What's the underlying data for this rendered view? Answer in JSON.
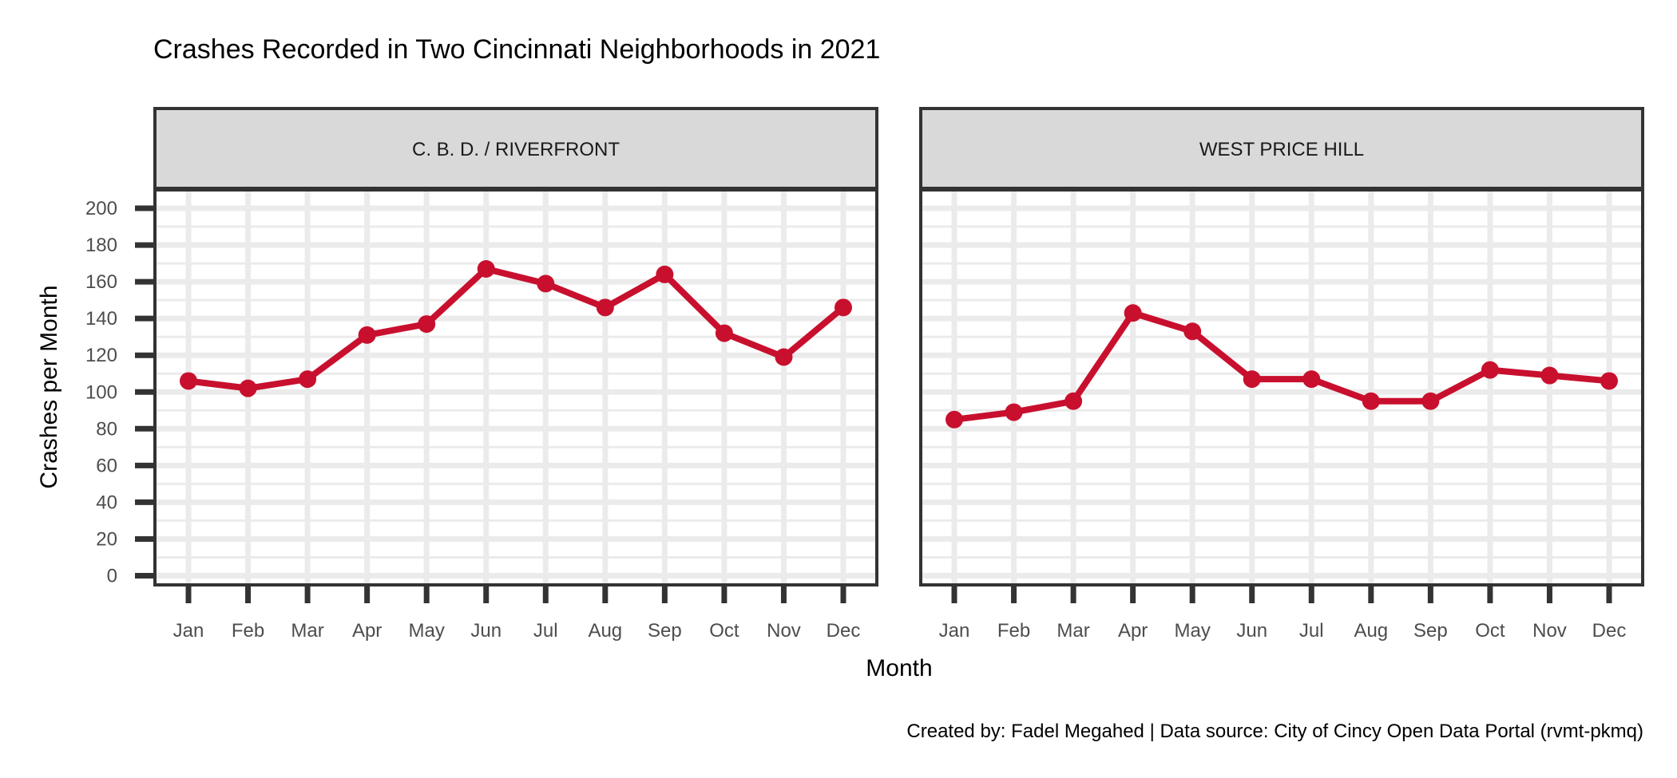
{
  "chart_data": {
    "type": "line",
    "title": "Crashes Recorded in Two Cincinnati Neighborhoods in 2021",
    "xlabel": "Month",
    "ylabel": "Crashes per Month",
    "caption": "Created by: Fadel Megahed | Data source: City of Cincy Open Data Portal (rvmt-pkmq)",
    "categories": [
      "Jan",
      "Feb",
      "Mar",
      "Apr",
      "May",
      "Jun",
      "Jul",
      "Aug",
      "Sep",
      "Oct",
      "Nov",
      "Dec"
    ],
    "yticks": [
      0,
      20,
      40,
      60,
      80,
      100,
      120,
      140,
      160,
      180,
      200
    ],
    "ylim": [
      -5,
      210
    ],
    "grid": true,
    "line_color": "#C8102E",
    "panels": [
      {
        "label": "C. B. D. / RIVERFRONT",
        "values": [
          106,
          102,
          107,
          131,
          137,
          167,
          159,
          146,
          164,
          132,
          119,
          146
        ]
      },
      {
        "label": "WEST PRICE HILL",
        "values": [
          85,
          89,
          95,
          143,
          133,
          107,
          107,
          95,
          95,
          112,
          109,
          106
        ]
      }
    ]
  }
}
